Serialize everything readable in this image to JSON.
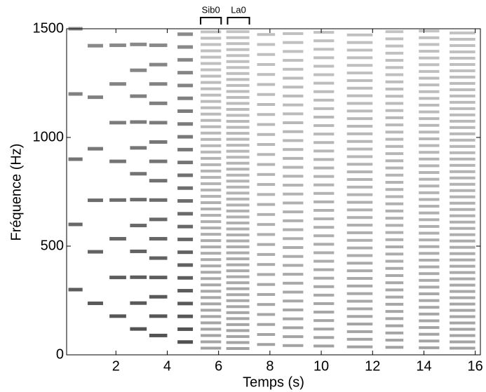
{
  "chart_data": {
    "type": "spectrogram",
    "x_label": "Temps (s)",
    "y_label": "Fréquence (Hz)",
    "xlim": [
      0.08,
      16.2
    ],
    "ylim": [
      0,
      1500
    ],
    "xticks": [
      2,
      4,
      6,
      8,
      10,
      12,
      14,
      16
    ],
    "yticks": [
      0,
      500,
      1000,
      1500
    ],
    "color": "#303030",
    "notes": [
      {
        "start": 0.15,
        "end": 0.7,
        "f0": 300
      },
      {
        "start": 0.9,
        "end": 1.5,
        "f0": 237
      },
      {
        "start": 1.75,
        "end": 2.4,
        "f0": 178
      },
      {
        "start": 2.55,
        "end": 3.2,
        "f0": 119
      },
      {
        "start": 3.3,
        "end": 4.0,
        "f0": 89
      },
      {
        "start": 4.4,
        "end": 5.0,
        "f0": 59
      },
      {
        "start": 5.3,
        "end": 6.1,
        "f0": 29.1
      },
      {
        "start": 6.3,
        "end": 7.2,
        "f0": 27.5
      },
      {
        "start": 7.5,
        "end": 8.2,
        "f0": 46
      },
      {
        "start": 8.5,
        "end": 9.3,
        "f0": 41
      },
      {
        "start": 9.7,
        "end": 10.5,
        "f0": 39
      },
      {
        "start": 11.0,
        "end": 12.0,
        "f0": 35
      },
      {
        "start": 12.5,
        "end": 13.2,
        "f0": 33
      },
      {
        "start": 13.8,
        "end": 14.6,
        "f0": 31
      },
      {
        "start": 15.0,
        "end": 16.0,
        "f0": 29
      }
    ],
    "annotations": [
      {
        "text": "Sib0",
        "start": 5.3,
        "end": 6.1
      },
      {
        "text": "La0",
        "start": 6.35,
        "end": 7.2
      }
    ]
  }
}
